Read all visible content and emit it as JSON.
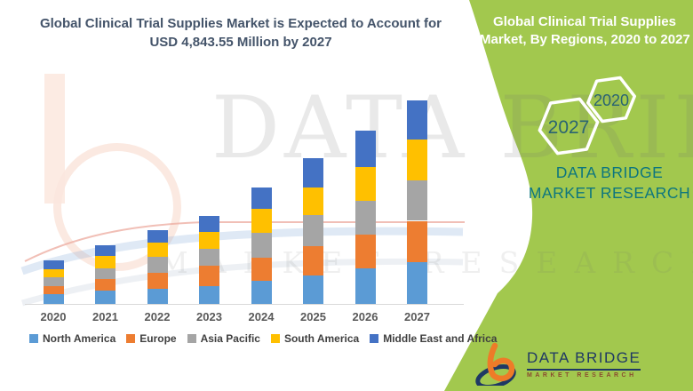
{
  "colors": {
    "panel_green": "#A2C84E",
    "title_text": "#44546A",
    "axis_label": "#595959",
    "legend_text": "#3F3F3F",
    "axis_line": "#D9D9D9",
    "teal_brand": "#0D767E",
    "hexagon_year_text": "#2A6472",
    "logo_navy": "#1F3864",
    "logo_orange": "#EE7B28",
    "logo_subtitle": "#8A4B2F",
    "watermark_peach": "#FBE7DE"
  },
  "chart": {
    "title_line1": "Global Clinical Trial Supplies Market is Expected to Account for",
    "title_line2": "USD 4,843.55 Million by 2027"
  },
  "chart_data": {
    "type": "bar",
    "stacked": true,
    "unit": "USD Million",
    "title": "Global Clinical Trial Supplies Market, By Regions, 2020 to 2027",
    "categories": [
      "2020",
      "2021",
      "2022",
      "2023",
      "2024",
      "2025",
      "2026",
      "2027"
    ],
    "series": [
      {
        "name": "North America",
        "color": "#5B9BD5",
        "values": [
          227,
          312,
          360,
          430,
          545,
          678,
          848,
          1003
        ]
      },
      {
        "name": "Europe",
        "color": "#ED7D31",
        "values": [
          197,
          282,
          388,
          473,
          551,
          700,
          806,
          975
        ]
      },
      {
        "name": "Asia Pacific",
        "color": "#A5A5A5",
        "values": [
          206,
          261,
          367,
          409,
          594,
          742,
          806,
          969
        ]
      },
      {
        "name": "South America",
        "color": "#FFC000",
        "values": [
          197,
          282,
          339,
          409,
          572,
          657,
          806,
          975
        ]
      },
      {
        "name": "Middle East and Africa",
        "color": "#4472C4",
        "values": [
          212,
          261,
          297,
          382,
          509,
          700,
          869,
          921.55
        ]
      }
    ],
    "annotated_total_2027": 4843.55,
    "ylim": [
      0,
      5000
    ],
    "gridlines": false,
    "legend_position": "bottom"
  },
  "green_panel": {
    "title_line1": "Global Clinical Trial Supplies",
    "title_line2": "Market, By Regions, 2020 to 2027",
    "hexagon_large_year": "2027",
    "hexagon_small_year": "2020",
    "brand_text": "DATA BRIDGE MARKET RESEARCH"
  },
  "logo": {
    "name": "DATA BRIDGE",
    "subtitle": "MARKET RESEARCH"
  },
  "watermark": {
    "line1": "DATA BRIDGE",
    "line2": "MARKET RESEARCH"
  }
}
